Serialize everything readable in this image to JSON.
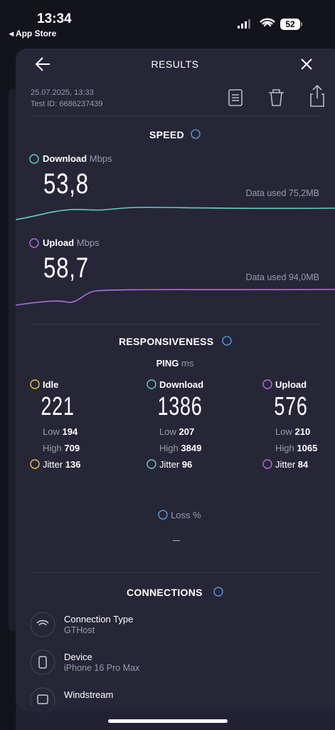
{
  "status_bar": {
    "time": "13:34",
    "back": "◂ App Store",
    "battery": "52"
  },
  "header": {
    "title": "RESULTS"
  },
  "meta": {
    "date": "25.07.2025, 13:33",
    "test_id": "Test ID: 6686237439"
  },
  "speed": {
    "title": "SPEED",
    "download": {
      "label": "Download",
      "unit": "Mbps",
      "value": "53,8",
      "data_used": "Data used 75,2MB"
    },
    "upload": {
      "label": "Upload",
      "unit": "Mbps",
      "value": "58,7",
      "data_used": "Data used 94,0MB"
    }
  },
  "responsiveness": {
    "title": "RESPONSIVENESS",
    "ping_label": "PING",
    "ping_unit": "ms",
    "columns": [
      {
        "label": "Idle",
        "value": 221,
        "low_label": "Low",
        "low": 194,
        "high_label": "High",
        "high": 709,
        "jitter_label": "Jitter",
        "jitter": 136
      },
      {
        "label": "Download",
        "value": 1386,
        "low_label": "Low",
        "low": 207,
        "high_label": "High",
        "high": 3849,
        "jitter_label": "Jitter",
        "jitter": 96
      },
      {
        "label": "Upload",
        "value": 576,
        "low_label": "Low",
        "low": 210,
        "high_label": "High",
        "high": 1065,
        "jitter_label": "Jitter",
        "jitter": 84
      }
    ]
  },
  "loss": {
    "label": "Loss",
    "unit": "%",
    "value": "–"
  },
  "connections": {
    "title": "CONNECTIONS",
    "items": [
      {
        "label": "Connection Type",
        "value": "GTHost"
      },
      {
        "label": "Device",
        "value": "iPhone 16 Pro Max"
      },
      {
        "label": "Windstream"
      }
    ]
  }
}
